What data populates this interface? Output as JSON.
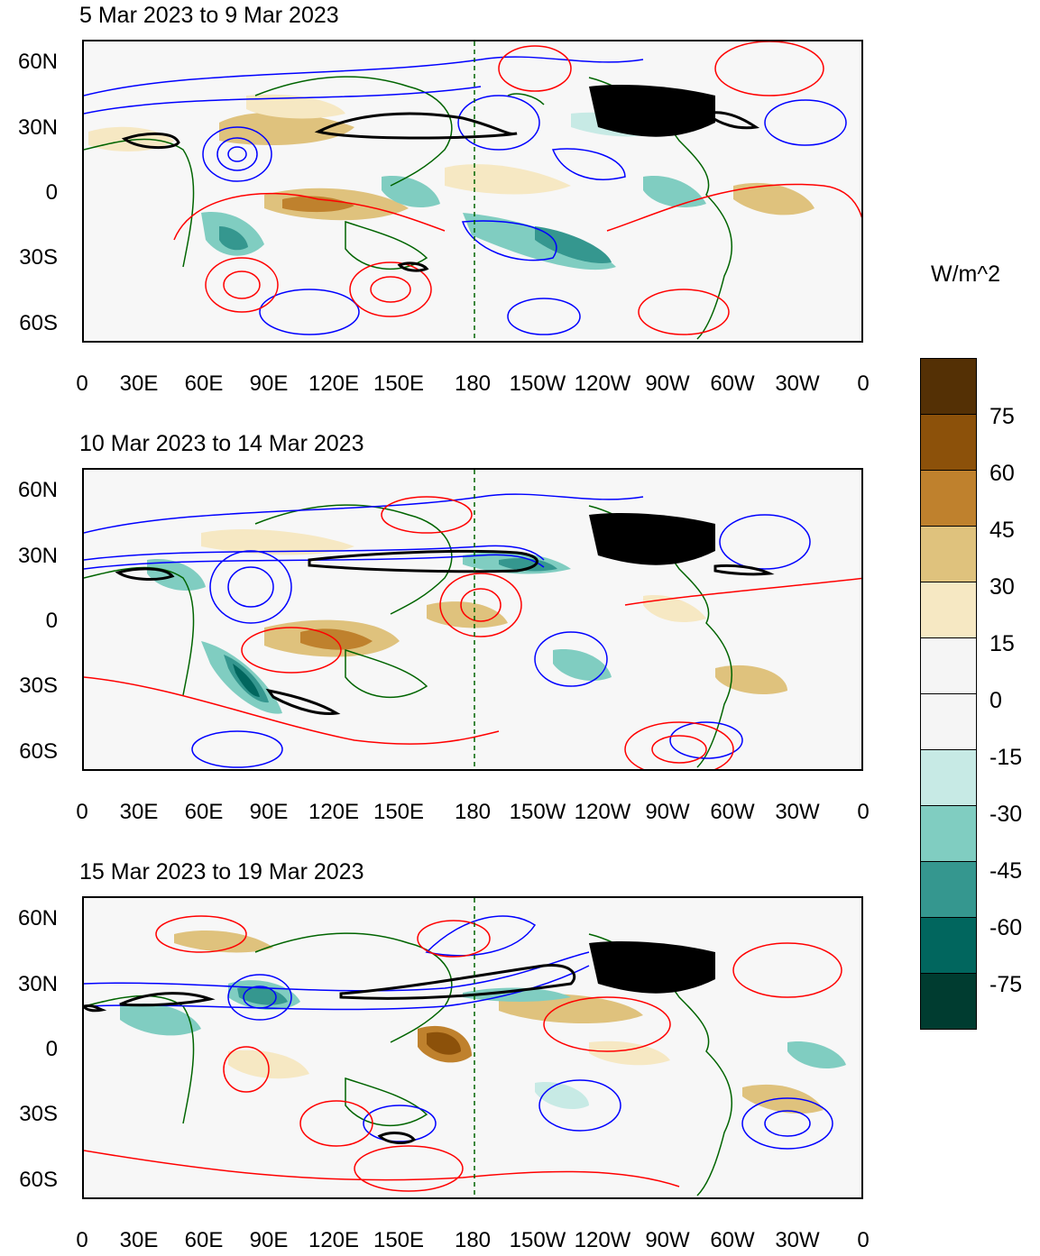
{
  "panels": [
    {
      "title": "5 Mar 2023 to 9 Mar 2023"
    },
    {
      "title": "10 Mar 2023 to 14 Mar 2023"
    },
    {
      "title": "15 Mar 2023 to 19 Mar 2023"
    }
  ],
  "y_axis_labels": [
    "60N",
    "30N",
    "0",
    "30S",
    "60S"
  ],
  "x_axis_labels": [
    "0",
    "30E",
    "60E",
    "90E",
    "120E",
    "150E",
    "180",
    "150W",
    "120W",
    "90W",
    "60W",
    "30W",
    "0"
  ],
  "colorbar": {
    "units": "W/m^2",
    "levels": [
      "75",
      "60",
      "45",
      "30",
      "15",
      "0",
      "-15",
      "-30",
      "-45",
      "-60",
      "-75"
    ],
    "colors": [
      "#543005",
      "#8c510a",
      "#bf812d",
      "#dfc27d",
      "#f6e8c3",
      "#f5f5f5",
      "#f5f5f5",
      "#c7eae5",
      "#80cdc1",
      "#35978f",
      "#01665e",
      "#003c30"
    ]
  },
  "contour_colors": {
    "positive": "#ff0000",
    "negative": "#0000ff",
    "jet": "#000000",
    "coast": "#006400"
  }
}
